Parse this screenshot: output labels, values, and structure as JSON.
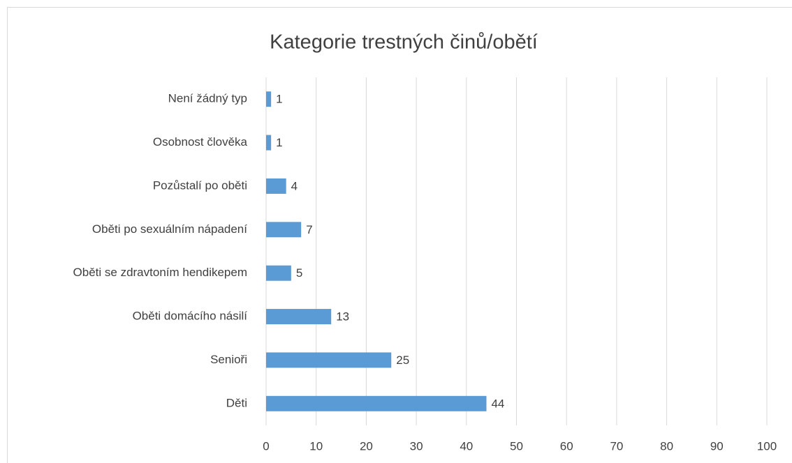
{
  "chart_data": {
    "type": "bar",
    "orientation": "horizontal",
    "title": "Kategorie trestných činů/obětí",
    "categories": [
      "Není žádný typ",
      "Osobnost člověka",
      "Pozůstalí po oběti",
      "Oběti po sexuálním nápadení",
      "Oběti se zdravtoním hendikepem",
      "Oběti domácího násilí",
      "Senioři",
      "Děti"
    ],
    "values": [
      1,
      1,
      4,
      7,
      5,
      13,
      25,
      44
    ],
    "color": "#5b9bd5",
    "xlim": [
      0,
      100
    ],
    "xticks": [
      0,
      10,
      20,
      30,
      40,
      50,
      60,
      70,
      80,
      90,
      100
    ],
    "grid": true
  }
}
